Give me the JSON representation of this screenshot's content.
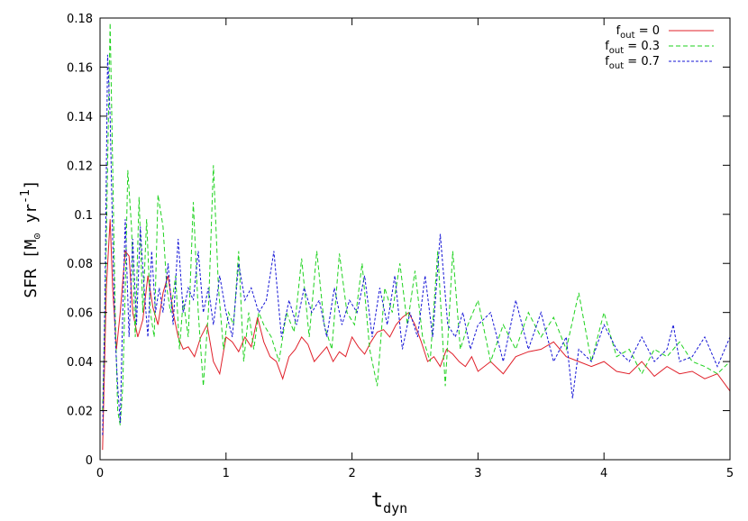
{
  "chart_data": {
    "type": "line",
    "xlabel": {
      "main": "t",
      "sub": "dyn"
    },
    "ylabel": {
      "pre": "SFR [M",
      "sub": "⊙",
      "mid": " yr",
      "sup": "-1",
      "post": "]"
    },
    "xlim": [
      0,
      5
    ],
    "ylim": [
      0,
      0.18
    ],
    "x_ticks": [
      0,
      1,
      2,
      3,
      4,
      5
    ],
    "x_tick_labels": [
      "0",
      "1",
      "2",
      "3",
      "4",
      "5"
    ],
    "y_ticks": [
      0,
      0.02,
      0.04,
      0.06,
      0.08,
      0.1,
      0.12,
      0.14,
      0.16,
      0.18
    ],
    "y_tick_labels": [
      "0",
      "0.02",
      "0.04",
      "0.06",
      "0.08",
      "0.1",
      "0.12",
      "0.14",
      "0.16",
      "0.18"
    ],
    "grid": false,
    "legend_position": "top-right",
    "series": [
      {
        "name": {
          "main": "f",
          "sub": "out",
          "rest": " = 0"
        },
        "color": "#e0202a",
        "dash": "solid",
        "x": [
          0.02,
          0.05,
          0.08,
          0.1,
          0.13,
          0.16,
          0.2,
          0.23,
          0.26,
          0.3,
          0.34,
          0.38,
          0.42,
          0.46,
          0.5,
          0.54,
          0.58,
          0.62,
          0.66,
          0.7,
          0.75,
          0.8,
          0.85,
          0.9,
          0.95,
          1.0,
          1.05,
          1.1,
          1.15,
          1.2,
          1.25,
          1.3,
          1.35,
          1.4,
          1.45,
          1.5,
          1.55,
          1.6,
          1.65,
          1.7,
          1.75,
          1.8,
          1.85,
          1.9,
          1.95,
          2.0,
          2.05,
          2.1,
          2.15,
          2.2,
          2.25,
          2.3,
          2.35,
          2.4,
          2.45,
          2.5,
          2.55,
          2.6,
          2.65,
          2.7,
          2.75,
          2.8,
          2.85,
          2.9,
          2.95,
          3.0,
          3.1,
          3.2,
          3.3,
          3.4,
          3.5,
          3.6,
          3.7,
          3.8,
          3.9,
          4.0,
          4.1,
          4.2,
          4.3,
          4.4,
          4.5,
          4.6,
          4.7,
          4.8,
          4.9,
          5.0
        ],
        "y": [
          0.004,
          0.07,
          0.098,
          0.07,
          0.045,
          0.06,
          0.085,
          0.083,
          0.06,
          0.05,
          0.057,
          0.075,
          0.062,
          0.055,
          0.068,
          0.075,
          0.06,
          0.05,
          0.045,
          0.046,
          0.042,
          0.05,
          0.055,
          0.04,
          0.035,
          0.05,
          0.048,
          0.044,
          0.05,
          0.046,
          0.058,
          0.048,
          0.042,
          0.04,
          0.033,
          0.042,
          0.045,
          0.05,
          0.047,
          0.04,
          0.043,
          0.046,
          0.04,
          0.044,
          0.042,
          0.05,
          0.046,
          0.043,
          0.048,
          0.052,
          0.053,
          0.05,
          0.055,
          0.058,
          0.06,
          0.055,
          0.048,
          0.04,
          0.042,
          0.038,
          0.045,
          0.043,
          0.04,
          0.038,
          0.042,
          0.036,
          0.04,
          0.035,
          0.042,
          0.044,
          0.045,
          0.048,
          0.042,
          0.04,
          0.038,
          0.04,
          0.036,
          0.035,
          0.04,
          0.034,
          0.038,
          0.035,
          0.036,
          0.033,
          0.035,
          0.028
        ]
      },
      {
        "name": {
          "main": "f",
          "sub": "out",
          "rest": " = 0.3"
        },
        "color": "#1ed21e",
        "dash": "5,3",
        "x": [
          0.02,
          0.04,
          0.06,
          0.08,
          0.1,
          0.12,
          0.14,
          0.16,
          0.18,
          0.2,
          0.22,
          0.25,
          0.28,
          0.31,
          0.34,
          0.37,
          0.4,
          0.43,
          0.46,
          0.5,
          0.53,
          0.56,
          0.6,
          0.63,
          0.66,
          0.7,
          0.74,
          0.78,
          0.82,
          0.86,
          0.9,
          0.94,
          0.98,
          1.02,
          1.06,
          1.1,
          1.14,
          1.18,
          1.22,
          1.26,
          1.3,
          1.36,
          1.42,
          1.48,
          1.54,
          1.6,
          1.66,
          1.72,
          1.78,
          1.84,
          1.9,
          1.96,
          2.02,
          2.08,
          2.14,
          2.2,
          2.26,
          2.32,
          2.38,
          2.44,
          2.5,
          2.56,
          2.62,
          2.68,
          2.74,
          2.8,
          2.86,
          2.92,
          3.0,
          3.1,
          3.2,
          3.3,
          3.4,
          3.5,
          3.6,
          3.7,
          3.8,
          3.9,
          4.0,
          4.1,
          4.2,
          4.3,
          4.4,
          4.5,
          4.6,
          4.7,
          4.8,
          4.9,
          5.0
        ],
        "y": [
          0.02,
          0.06,
          0.12,
          0.178,
          0.12,
          0.06,
          0.02,
          0.014,
          0.03,
          0.07,
          0.118,
          0.095,
          0.05,
          0.107,
          0.06,
          0.098,
          0.06,
          0.05,
          0.108,
          0.095,
          0.07,
          0.06,
          0.075,
          0.045,
          0.065,
          0.05,
          0.105,
          0.06,
          0.03,
          0.06,
          0.12,
          0.07,
          0.045,
          0.06,
          0.055,
          0.085,
          0.04,
          0.06,
          0.045,
          0.06,
          0.055,
          0.05,
          0.04,
          0.06,
          0.052,
          0.082,
          0.05,
          0.085,
          0.055,
          0.045,
          0.084,
          0.06,
          0.055,
          0.08,
          0.045,
          0.03,
          0.07,
          0.06,
          0.08,
          0.055,
          0.077,
          0.05,
          0.04,
          0.085,
          0.03,
          0.085,
          0.045,
          0.055,
          0.065,
          0.04,
          0.055,
          0.045,
          0.06,
          0.05,
          0.058,
          0.045,
          0.068,
          0.04,
          0.06,
          0.042,
          0.045,
          0.035,
          0.045,
          0.042,
          0.048,
          0.04,
          0.038,
          0.035,
          0.04
        ]
      },
      {
        "name": {
          "main": "f",
          "sub": "out",
          "rest": " = 0.7"
        },
        "color": "#1515d6",
        "dash": "3,2",
        "x": [
          0.02,
          0.04,
          0.06,
          0.08,
          0.1,
          0.12,
          0.14,
          0.16,
          0.18,
          0.2,
          0.23,
          0.26,
          0.29,
          0.32,
          0.35,
          0.38,
          0.41,
          0.44,
          0.47,
          0.5,
          0.54,
          0.58,
          0.62,
          0.66,
          0.7,
          0.74,
          0.78,
          0.82,
          0.86,
          0.9,
          0.95,
          1.0,
          1.05,
          1.1,
          1.15,
          1.2,
          1.26,
          1.32,
          1.38,
          1.44,
          1.5,
          1.56,
          1.62,
          1.68,
          1.74,
          1.8,
          1.86,
          1.92,
          1.98,
          2.04,
          2.1,
          2.16,
          2.22,
          2.28,
          2.34,
          2.4,
          2.46,
          2.52,
          2.58,
          2.64,
          2.7,
          2.76,
          2.82,
          2.88,
          2.94,
          3.0,
          3.1,
          3.2,
          3.3,
          3.4,
          3.5,
          3.6,
          3.7,
          3.75,
          3.8,
          3.9,
          4.0,
          4.1,
          4.2,
          4.3,
          4.4,
          4.5,
          4.55,
          4.6,
          4.7,
          4.8,
          4.9,
          5.0
        ],
        "y": [
          0.01,
          0.07,
          0.165,
          0.14,
          0.09,
          0.05,
          0.03,
          0.015,
          0.06,
          0.098,
          0.05,
          0.09,
          0.055,
          0.095,
          0.07,
          0.05,
          0.085,
          0.06,
          0.07,
          0.06,
          0.08,
          0.055,
          0.09,
          0.06,
          0.07,
          0.065,
          0.085,
          0.06,
          0.07,
          0.055,
          0.075,
          0.06,
          0.05,
          0.08,
          0.065,
          0.07,
          0.06,
          0.065,
          0.085,
          0.05,
          0.065,
          0.055,
          0.07,
          0.06,
          0.065,
          0.05,
          0.07,
          0.055,
          0.065,
          0.06,
          0.075,
          0.05,
          0.07,
          0.055,
          0.075,
          0.045,
          0.06,
          0.05,
          0.075,
          0.05,
          0.092,
          0.055,
          0.05,
          0.06,
          0.045,
          0.055,
          0.06,
          0.04,
          0.065,
          0.045,
          0.06,
          0.04,
          0.05,
          0.025,
          0.045,
          0.04,
          0.055,
          0.045,
          0.04,
          0.05,
          0.04,
          0.045,
          0.055,
          0.04,
          0.042,
          0.05,
          0.038,
          0.05
        ]
      }
    ]
  }
}
